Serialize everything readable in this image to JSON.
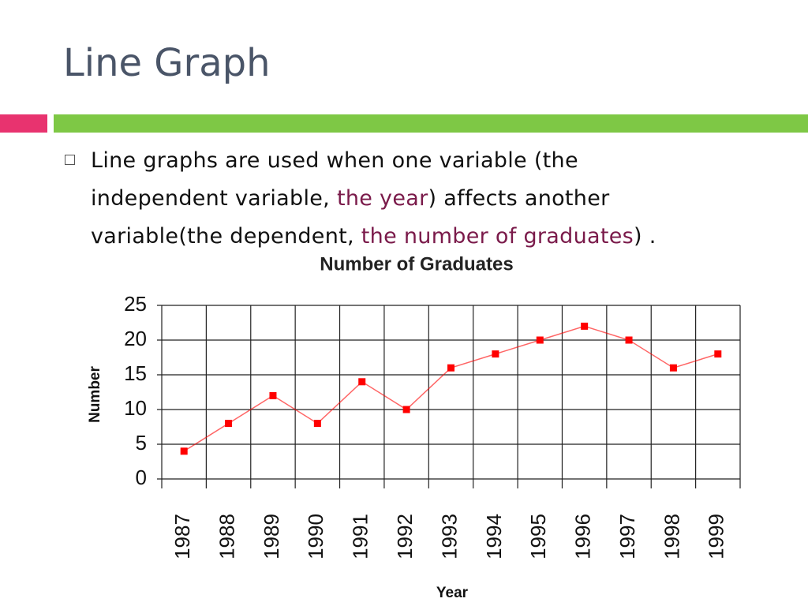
{
  "slide": {
    "title": "Line Graph",
    "bullet": [
      "Line graphs are used when one variable (the independent variable, ",
      "the year",
      ") affects another variable(the dependent, ",
      "the number of graduates",
      ") ."
    ]
  },
  "chart_data": {
    "type": "line",
    "title": "Number of Graduates",
    "x_label": "Year",
    "y_label": "Number",
    "categories": [
      "1987",
      "1988",
      "1989",
      "1990",
      "1991",
      "1992",
      "1993",
      "1994",
      "1995",
      "1996",
      "1997",
      "1998",
      "1999"
    ],
    "series": [
      {
        "color": "#ff0000",
        "values": [
          4,
          8,
          12,
          8,
          14,
          10,
          16,
          18,
          20,
          22,
          20,
          16,
          18
        ]
      }
    ],
    "ylim": [
      0,
      25
    ],
    "yticks": [
      0,
      5,
      10,
      15,
      20,
      25
    ],
    "grid": true
  }
}
